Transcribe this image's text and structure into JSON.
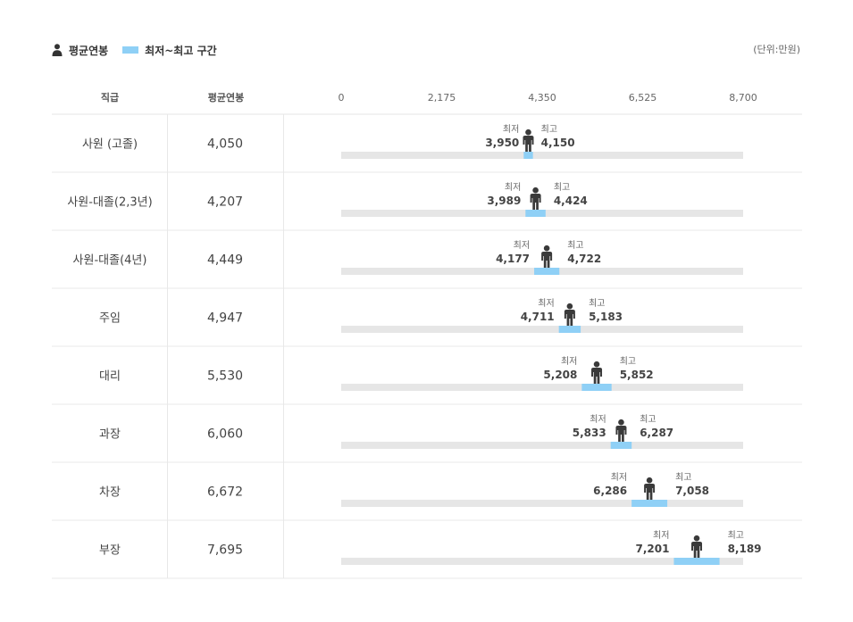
{
  "legend": {
    "avg_label": "평균연봉",
    "range_label": "최저~최고 구간"
  },
  "unit": "(단위:만원)",
  "headers": {
    "grade": "직급",
    "avg": "평균연봉"
  },
  "labels": {
    "min": "최저",
    "max": "최고"
  },
  "colors": {
    "range": "#8fd0f6",
    "track": "#e6e6e6",
    "person": "#3a3a3a"
  },
  "chart_data": {
    "type": "bar",
    "xlim": [
      0,
      8700
    ],
    "ticks": [
      "0",
      "2,175",
      "4,350",
      "6,525",
      "8,700"
    ],
    "tick_values": [
      0,
      2175,
      4350,
      6525,
      8700
    ],
    "rows": [
      {
        "grade": "사원 (고졸)",
        "avg": 4050,
        "avg_text": "4,050",
        "min": 3950,
        "min_text": "3,950",
        "max": 4150,
        "max_text": "4,150"
      },
      {
        "grade": "사원-대졸(2,3년)",
        "avg": 4207,
        "avg_text": "4,207",
        "min": 3989,
        "min_text": "3,989",
        "max": 4424,
        "max_text": "4,424"
      },
      {
        "grade": "사원-대졸(4년)",
        "avg": 4449,
        "avg_text": "4,449",
        "min": 4177,
        "min_text": "4,177",
        "max": 4722,
        "max_text": "4,722"
      },
      {
        "grade": "주임",
        "avg": 4947,
        "avg_text": "4,947",
        "min": 4711,
        "min_text": "4,711",
        "max": 5183,
        "max_text": "5,183"
      },
      {
        "grade": "대리",
        "avg": 5530,
        "avg_text": "5,530",
        "min": 5208,
        "min_text": "5,208",
        "max": 5852,
        "max_text": "5,852"
      },
      {
        "grade": "과장",
        "avg": 6060,
        "avg_text": "6,060",
        "min": 5833,
        "min_text": "5,833",
        "max": 6287,
        "max_text": "6,287"
      },
      {
        "grade": "차장",
        "avg": 6672,
        "avg_text": "6,672",
        "min": 6286,
        "min_text": "6,286",
        "max": 7058,
        "max_text": "7,058"
      },
      {
        "grade": "부장",
        "avg": 7695,
        "avg_text": "7,695",
        "min": 7201,
        "min_text": "7,201",
        "max": 8189,
        "max_text": "8,189"
      }
    ]
  }
}
